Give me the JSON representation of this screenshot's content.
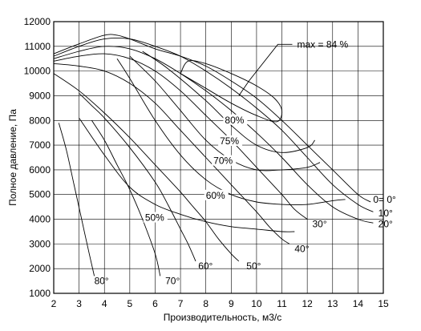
{
  "chart_data": {
    "type": "line",
    "title": "",
    "xlabel": "Производительность, м3/с",
    "ylabel": "Полное давление, Па",
    "xlim": [
      2,
      15
    ],
    "ylim": [
      1000,
      12000
    ],
    "x_ticks": [
      "2",
      "3",
      "4",
      "5",
      "6",
      "7",
      "8",
      "9",
      "10",
      "11",
      "12",
      "13",
      "14",
      "15"
    ],
    "y_ticks": [
      "1000",
      "2000",
      "3000",
      "4000",
      "5000",
      "6000",
      "7000",
      "8000",
      "9000",
      "10000",
      "11000",
      "12000"
    ],
    "grid": true,
    "annotations": [
      "max = 84 %"
    ],
    "series": [
      {
        "name": "0°",
        "label_text": "0= 0°",
        "label_xy": [
          14.6,
          4800
        ],
        "x": [
          2.0,
          3.0,
          4.0,
          4.5,
          5.0,
          6.0,
          7.0,
          8.0,
          9.0,
          10.0,
          11.0,
          12.0,
          13.0,
          14.0,
          14.5
        ],
        "y": [
          10700,
          11100,
          11450,
          11450,
          11300,
          10900,
          10600,
          10200,
          9600,
          8900,
          8000,
          7000,
          6000,
          5000,
          4700
        ]
      },
      {
        "name": "10°",
        "label_text": "10°",
        "label_xy": [
          14.8,
          4250
        ],
        "x": [
          2.0,
          3.0,
          4.0,
          5.0,
          6.0,
          7.0,
          8.0,
          9.0,
          10.0,
          11.0,
          12.0,
          13.0,
          14.0,
          14.6
        ],
        "y": [
          10600,
          11000,
          11300,
          11300,
          11000,
          10600,
          10000,
          9300,
          8500,
          7600,
          6500,
          5400,
          4600,
          4300
        ]
      },
      {
        "name": "20°",
        "label_text": "20°",
        "label_xy": [
          14.8,
          3800
        ],
        "x": [
          2.0,
          3.0,
          4.0,
          5.0,
          6.0,
          7.0,
          8.0,
          9.0,
          10.0,
          11.0,
          12.0,
          13.0,
          14.0,
          14.6
        ],
        "y": [
          10500,
          10800,
          11000,
          10900,
          10500,
          9900,
          9200,
          8400,
          7500,
          6500,
          5400,
          4500,
          4000,
          3850
        ]
      },
      {
        "name": "30°",
        "label_text": "30°",
        "label_xy": [
          12.2,
          3800
        ],
        "x": [
          2.0,
          3.0,
          4.0,
          5.0,
          6.0,
          7.0,
          8.0,
          9.0,
          10.0,
          11.0,
          11.5,
          12.0
        ],
        "y": [
          10400,
          10600,
          10700,
          10500,
          10000,
          9200,
          8200,
          7200,
          6100,
          5000,
          4400,
          4000
        ]
      },
      {
        "name": "40°",
        "label_text": "40°",
        "label_xy": [
          11.5,
          2800
        ],
        "x": [
          2.0,
          3.0,
          4.0,
          5.0,
          6.0,
          7.0,
          8.0,
          9.0,
          10.0,
          10.5,
          11.0,
          11.3
        ],
        "y": [
          10300,
          10200,
          10000,
          9500,
          8700,
          7600,
          6500,
          5400,
          4300,
          3700,
          3200,
          3000
        ]
      },
      {
        "name": "50°",
        "label_text": "50°",
        "label_xy": [
          9.6,
          2100
        ],
        "x": [
          2.0,
          3.0,
          4.0,
          5.0,
          6.0,
          7.0,
          7.5,
          8.0,
          8.5,
          9.0,
          9.3
        ],
        "y": [
          9900,
          9200,
          8300,
          7300,
          6200,
          5100,
          4500,
          3900,
          3200,
          2600,
          2300
        ]
      },
      {
        "name": "60°",
        "label_text": "60°",
        "label_xy": [
          7.7,
          2100
        ],
        "x": [
          3.0,
          3.5,
          4.0,
          5.0,
          6.0,
          6.5,
          7.0,
          7.3,
          7.6
        ],
        "y": [
          9100,
          8600,
          8100,
          6900,
          5500,
          4600,
          3600,
          3000,
          2300
        ]
      },
      {
        "name": "70°",
        "label_text": "70°",
        "label_xy": [
          6.4,
          1500
        ],
        "x": [
          3.5,
          4.0,
          4.5,
          5.0,
          5.5,
          6.0,
          6.2
        ],
        "y": [
          8000,
          7200,
          6200,
          5200,
          4000,
          2600,
          1700
        ]
      },
      {
        "name": "80°",
        "label_text": "80°",
        "label_xy": [
          3.6,
          1500
        ],
        "x": [
          2.2,
          2.5,
          2.8,
          3.1,
          3.4,
          3.6
        ],
        "y": [
          7900,
          6800,
          5400,
          4000,
          2600,
          1700
        ]
      }
    ],
    "efficiency_contours": [
      {
        "label": "80%",
        "label_xy": [
          8.75,
          7950
        ],
        "x": [
          7.0,
          8.0,
          9.0,
          10.0,
          10.8,
          11.0,
          10.7,
          10.0,
          9.0,
          8.0,
          7.3,
          7.0
        ],
        "y": [
          9900,
          9300,
          8700,
          8200,
          7950,
          8400,
          8900,
          9400,
          9900,
          10300,
          10400,
          9900
        ]
      },
      {
        "label": "75%",
        "label_xy": [
          8.55,
          7100
        ],
        "x": [
          5.5,
          6.5,
          8.0,
          9.0,
          10.0,
          11.0,
          12.0,
          12.3
        ],
        "y": [
          10800,
          10100,
          8800,
          7800,
          7000,
          6700,
          6900,
          7200
        ]
      },
      {
        "label": "70%",
        "label_xy": [
          8.3,
          6300
        ],
        "x": [
          5.0,
          6.0,
          7.0,
          8.0,
          9.0,
          10.0,
          11.0,
          12.0,
          12.5
        ],
        "y": [
          10600,
          9600,
          8400,
          7200,
          6400,
          6000,
          6000,
          6100,
          6300
        ]
      },
      {
        "label": "60%",
        "label_xy": [
          8.0,
          4900
        ],
        "x": [
          4.5,
          5.0,
          6.0,
          7.0,
          8.0,
          9.0,
          10.0,
          11.0,
          12.0,
          13.0,
          13.5
        ],
        "y": [
          10500,
          9700,
          8000,
          6600,
          5600,
          5000,
          4700,
          4600,
          4600,
          4750,
          4800
        ]
      },
      {
        "label": "50%",
        "label_xy": [
          5.6,
          4000
        ],
        "x": [
          3.0,
          4.0,
          5.0,
          6.0,
          7.0,
          8.0,
          9.0,
          10.0,
          11.0,
          11.5
        ],
        "y": [
          8100,
          6600,
          5300,
          4600,
          4200,
          3900,
          3700,
          3600,
          3500,
          3500
        ]
      }
    ]
  }
}
